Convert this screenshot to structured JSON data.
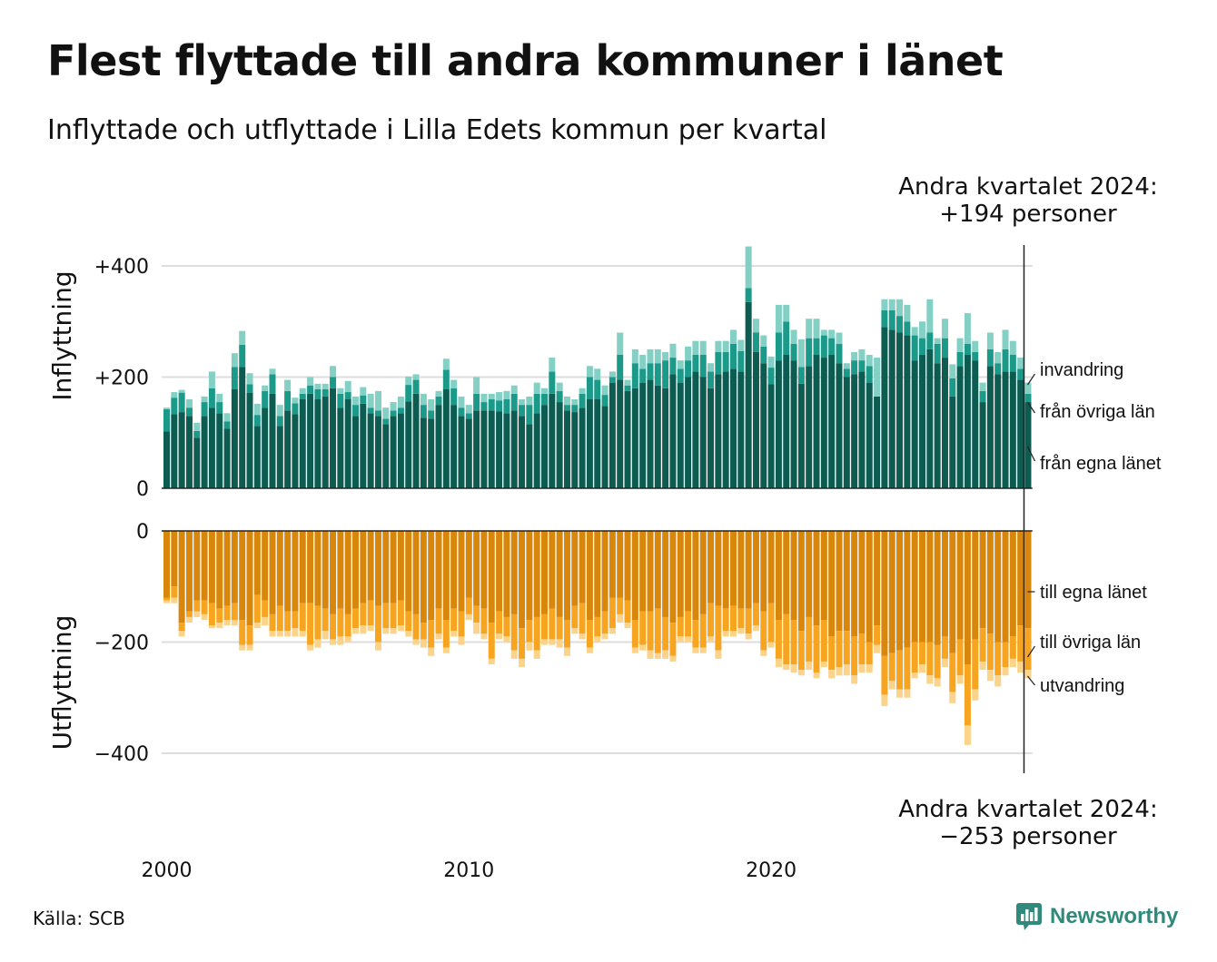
{
  "header": {
    "title": "Flest flyttade till andra kommuner i länet",
    "subtitle": "Inflyttade och utflyttade i Lilla Edets kommun per kvartal"
  },
  "footer": {
    "source": "Källa: SCB",
    "logo_text": "Newsworthy"
  },
  "colors": {
    "in_egna": "#0d5c52",
    "in_ovriga": "#1c9a89",
    "in_invandring": "#84d0c4",
    "out_egna": "#d9860d",
    "out_ovriga": "#f7a520",
    "out_utvandring": "#fbd38a",
    "grid": "#dddddd",
    "logo": "#2f8a7b"
  },
  "chart_data": [
    {
      "type": "bar",
      "stacked": true,
      "ylabel": "Inflyttning",
      "ylim": [
        0,
        430
      ],
      "yticks": [
        0,
        200,
        400
      ],
      "ytick_labels": [
        "0",
        "+200",
        "+400"
      ],
      "x_start": "2000 Q1",
      "x_ticks": [
        "2000",
        "2010",
        "2020"
      ],
      "annotation": {
        "line1": "Andra kvartalet 2024:",
        "line2": "+194 personer"
      },
      "series": [
        {
          "name": "från egna länet",
          "values": [
            102,
            133,
            137,
            130,
            91,
            130,
            145,
            135,
            107,
            178,
            218,
            172,
            112,
            145,
            170,
            112,
            140,
            133,
            160,
            170,
            160,
            165,
            180,
            145,
            160,
            130,
            152,
            135,
            130,
            115,
            130,
            135,
            156,
            170,
            127,
            125,
            150,
            178,
            150,
            130,
            125,
            140,
            140,
            140,
            138,
            135,
            140,
            130,
            115,
            135,
            150,
            170,
            155,
            140,
            137,
            145,
            160,
            160,
            148,
            190,
            195,
            175,
            180,
            190,
            195,
            185,
            180,
            205,
            190,
            200,
            210,
            200,
            180,
            205,
            210,
            215,
            210,
            335,
            245,
            225,
            187,
            230,
            240,
            230,
            188,
            220,
            240,
            235,
            240,
            225,
            200,
            205,
            210,
            190,
            165,
            290,
            285,
            280,
            275,
            230,
            240,
            250,
            225,
            235,
            165,
            220,
            240,
            230,
            155,
            220,
            205,
            210,
            210,
            195,
            155
          ]
        },
        {
          "name": "från övriga län",
          "values": [
            40,
            30,
            35,
            15,
            12,
            25,
            35,
            20,
            13,
            40,
            40,
            15,
            20,
            30,
            35,
            18,
            35,
            20,
            10,
            15,
            18,
            13,
            20,
            25,
            13,
            20,
            15,
            10,
            10,
            10,
            10,
            10,
            30,
            25,
            23,
            15,
            15,
            35,
            30,
            15,
            10,
            30,
            15,
            20,
            20,
            25,
            30,
            20,
            35,
            35,
            20,
            40,
            20,
            10,
            13,
            25,
            40,
            35,
            20,
            10,
            45,
            10,
            45,
            25,
            30,
            40,
            50,
            30,
            25,
            30,
            30,
            40,
            30,
            40,
            35,
            45,
            37,
            25,
            35,
            30,
            30,
            50,
            60,
            30,
            30,
            50,
            30,
            40,
            30,
            35,
            15,
            25,
            20,
            30,
            0,
            30,
            35,
            30,
            25,
            45,
            30,
            30,
            35,
            35,
            33,
            25,
            20,
            15,
            20,
            30,
            20,
            40,
            30,
            20,
            15
          ]
        },
        {
          "name": "invandring",
          "values": [
            3,
            10,
            5,
            15,
            15,
            10,
            30,
            15,
            15,
            25,
            25,
            20,
            20,
            10,
            10,
            20,
            20,
            10,
            10,
            15,
            10,
            10,
            20,
            10,
            20,
            15,
            15,
            25,
            35,
            20,
            15,
            20,
            15,
            10,
            20,
            20,
            10,
            20,
            15,
            20,
            15,
            30,
            15,
            10,
            15,
            15,
            15,
            10,
            15,
            20,
            10,
            25,
            15,
            15,
            10,
            10,
            20,
            20,
            17,
            10,
            40,
            10,
            25,
            25,
            25,
            25,
            15,
            25,
            15,
            25,
            25,
            25,
            15,
            20,
            20,
            25,
            20,
            75,
            25,
            20,
            20,
            50,
            30,
            25,
            50,
            35,
            35,
            10,
            15,
            20,
            10,
            15,
            20,
            20,
            70,
            20,
            20,
            30,
            30,
            15,
            30,
            60,
            10,
            35,
            25,
            25,
            55,
            20,
            15,
            30,
            20,
            35,
            25,
            20,
            20
          ]
        }
      ]
    },
    {
      "type": "bar",
      "stacked": true,
      "ylabel": "Utflyttning",
      "ylim": [
        -430,
        0
      ],
      "yticks": [
        0,
        -200,
        -400
      ],
      "ytick_labels": [
        "0",
        "−200",
        "−400"
      ],
      "x_start": "2000 Q1",
      "x_ticks": [
        "2000",
        "2010",
        "2020"
      ],
      "annotation": {
        "line1": "Andra kvartalet 2024:",
        "line2": "−253 personer"
      },
      "series": [
        {
          "name": "till egna länet",
          "values": [
            -120,
            -100,
            -165,
            -145,
            -125,
            -125,
            -130,
            -140,
            -135,
            -130,
            -160,
            -170,
            -115,
            -125,
            -150,
            -135,
            -145,
            -145,
            -130,
            -130,
            -135,
            -140,
            -150,
            -140,
            -150,
            -140,
            -130,
            -125,
            -135,
            -130,
            -130,
            -125,
            -145,
            -150,
            -165,
            -160,
            -140,
            -160,
            -140,
            -145,
            -120,
            -135,
            -140,
            -165,
            -145,
            -155,
            -150,
            -175,
            -160,
            -155,
            -150,
            -140,
            -155,
            -160,
            -135,
            -130,
            -160,
            -155,
            -145,
            -120,
            -120,
            -125,
            -160,
            -145,
            -145,
            -140,
            -155,
            -165,
            -155,
            -145,
            -160,
            -150,
            -130,
            -135,
            -140,
            -135,
            -140,
            -140,
            -130,
            -145,
            -130,
            -160,
            -150,
            -160,
            -180,
            -155,
            -170,
            -160,
            -190,
            -180,
            -180,
            -190,
            -185,
            -200,
            -170,
            -225,
            -220,
            -215,
            -210,
            -200,
            -200,
            -200,
            -205,
            -190,
            -220,
            -195,
            -240,
            -195,
            -175,
            -185,
            -200,
            -200,
            -190,
            -170,
            -175
          ]
        },
        {
          "name": "till övriga län",
          "values": [
            -5,
            -20,
            -15,
            -10,
            -20,
            -25,
            -40,
            -25,
            -25,
            -30,
            -45,
            -35,
            -50,
            -30,
            -30,
            -45,
            -35,
            -30,
            -50,
            -75,
            -60,
            -40,
            -45,
            -50,
            -40,
            -35,
            -40,
            -45,
            -65,
            -45,
            -45,
            -45,
            -35,
            -45,
            -30,
            -50,
            -45,
            -50,
            -40,
            -45,
            -30,
            -30,
            -45,
            -65,
            -40,
            -35,
            -65,
            -55,
            -40,
            -60,
            -45,
            -55,
            -40,
            -50,
            -40,
            -55,
            -50,
            -35,
            -40,
            -55,
            -30,
            -40,
            -50,
            -60,
            -70,
            -80,
            -60,
            -60,
            -35,
            -45,
            -50,
            -60,
            -60,
            -80,
            -40,
            -45,
            -35,
            -45,
            -40,
            -70,
            -70,
            -70,
            -90,
            -80,
            -70,
            -80,
            -85,
            -75,
            -60,
            -65,
            -60,
            -70,
            -55,
            -40,
            -35,
            -70,
            -50,
            -70,
            -75,
            -55,
            -40,
            -60,
            -60,
            -40,
            -70,
            -65,
            -110,
            -90,
            -60,
            -65,
            -60,
            -45,
            -40,
            -65,
            -75
          ]
        },
        {
          "name": "utvandring",
          "values": [
            -5,
            -10,
            -10,
            -10,
            -10,
            -10,
            -5,
            -10,
            -10,
            -10,
            -10,
            -10,
            -10,
            -15,
            -10,
            -10,
            -10,
            -15,
            -10,
            -10,
            -15,
            -15,
            -10,
            -15,
            -10,
            -10,
            -15,
            -10,
            -15,
            -10,
            -10,
            -10,
            -10,
            -10,
            -15,
            -15,
            -10,
            -10,
            -10,
            -15,
            -10,
            -20,
            -10,
            -10,
            -10,
            -10,
            -15,
            -15,
            -15,
            -15,
            -10,
            -10,
            -15,
            -15,
            -10,
            -10,
            -10,
            -10,
            -10,
            -10,
            -15,
            -10,
            -10,
            -10,
            -15,
            -10,
            -15,
            -10,
            -10,
            -10,
            -10,
            -10,
            -10,
            -15,
            -10,
            -10,
            -10,
            -10,
            -10,
            -10,
            -10,
            -15,
            -10,
            -15,
            -10,
            -15,
            -10,
            -10,
            -15,
            -15,
            -20,
            -15,
            -15,
            -15,
            -15,
            -20,
            -15,
            -15,
            -15,
            -10,
            -15,
            -15,
            -15,
            -15,
            -20,
            -15,
            -35,
            -20,
            -15,
            -20,
            -20,
            -15,
            -15,
            -20,
            -15
          ]
        }
      ]
    }
  ]
}
